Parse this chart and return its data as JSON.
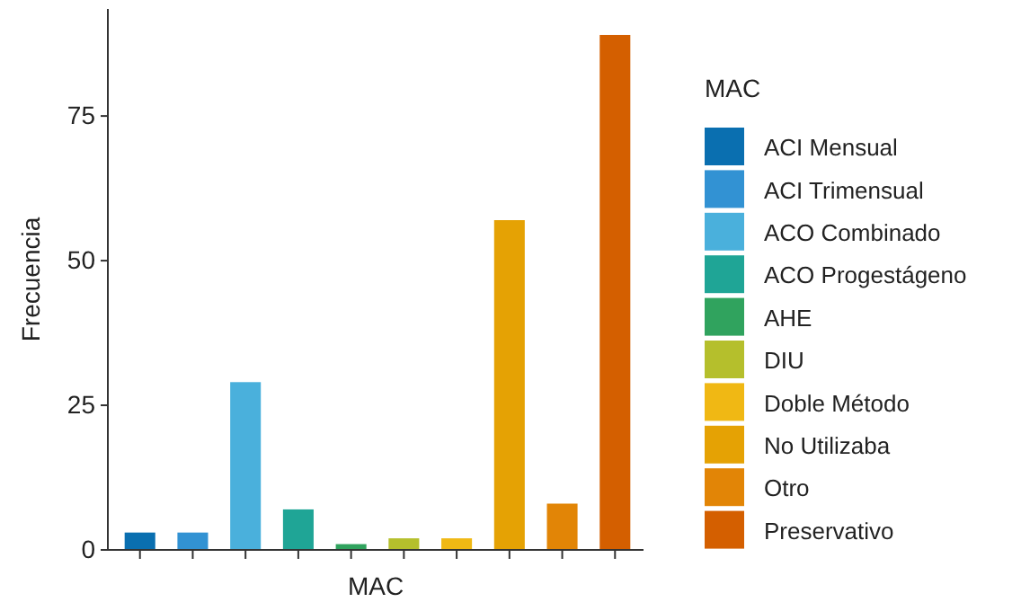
{
  "chart_data": {
    "type": "bar",
    "xlabel": "MAC",
    "ylabel": "Frecuencia",
    "legend_title": "MAC",
    "legend": "right",
    "categories": [
      null,
      null,
      null,
      null,
      null,
      null,
      null,
      null,
      null,
      null
    ],
    "ylim": [
      0,
      93.5
    ],
    "yticks": [
      0,
      25,
      50,
      75
    ],
    "series": [
      {
        "name": "ACI Mensual",
        "color": "#0a6fb0",
        "values": [
          3,
          null,
          null,
          null,
          null,
          null,
          null,
          null,
          null,
          null
        ]
      },
      {
        "name": "ACI Trimensual",
        "color": "#3292d3",
        "values": [
          null,
          3,
          null,
          null,
          null,
          null,
          null,
          null,
          null,
          null
        ]
      },
      {
        "name": "ACO Combinado",
        "color": "#4ab0dc",
        "values": [
          null,
          null,
          29,
          null,
          null,
          null,
          null,
          null,
          null,
          null
        ]
      },
      {
        "name": "ACO Progestágeno",
        "color": "#1fa596",
        "values": [
          null,
          null,
          null,
          7,
          null,
          null,
          null,
          null,
          null,
          null
        ]
      },
      {
        "name": "AHE",
        "color": "#30a35e",
        "values": [
          null,
          null,
          null,
          null,
          1,
          null,
          null,
          null,
          null,
          null
        ]
      },
      {
        "name": "DIU",
        "color": "#b5bf2c",
        "values": [
          null,
          null,
          null,
          null,
          null,
          2,
          null,
          null,
          null,
          null
        ]
      },
      {
        "name": "Doble Método",
        "color": "#f0b814",
        "values": [
          null,
          null,
          null,
          null,
          null,
          null,
          2,
          null,
          null,
          null
        ]
      },
      {
        "name": "No Utilizaba",
        "color": "#e5a204",
        "values": [
          null,
          null,
          null,
          null,
          null,
          null,
          null,
          57,
          null,
          null
        ]
      },
      {
        "name": "Otro",
        "color": "#e28506",
        "values": [
          null,
          null,
          null,
          null,
          null,
          null,
          null,
          null,
          8,
          null
        ]
      },
      {
        "name": "Preservativo",
        "color": "#d45f00",
        "values": [
          null,
          null,
          null,
          null,
          null,
          null,
          null,
          null,
          null,
          89
        ]
      }
    ]
  }
}
